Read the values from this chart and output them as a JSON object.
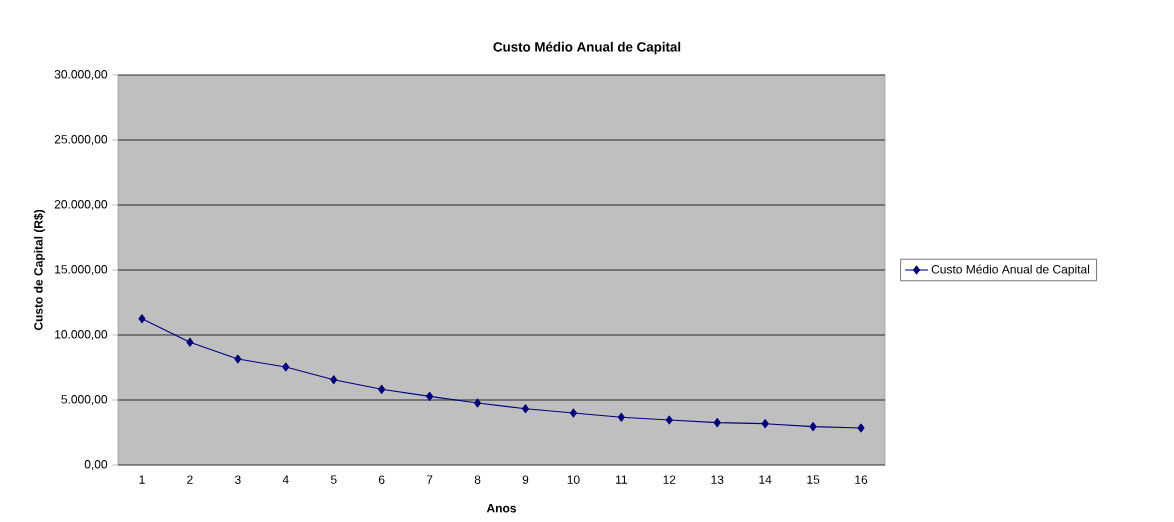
{
  "chart_data": {
    "type": "line",
    "title": "Custo Médio Anual de Capital",
    "xlabel": "Anos",
    "ylabel": "Custo de Capital (R$)",
    "categories": [
      "1",
      "2",
      "3",
      "4",
      "5",
      "6",
      "7",
      "8",
      "9",
      "10",
      "11",
      "12",
      "13",
      "14",
      "15",
      "16"
    ],
    "series": [
      {
        "name": "Custo Médio Anual de Capital",
        "color": "#000080",
        "values": [
          11250,
          9440,
          8150,
          7540,
          6560,
          5820,
          5280,
          4770,
          4330,
          4000,
          3670,
          3460,
          3260,
          3180,
          2950,
          2850
        ]
      }
    ],
    "ylim": [
      0,
      30000
    ],
    "yticks": [
      {
        "value": 0,
        "label": "0,00"
      },
      {
        "value": 5000,
        "label": "5.000,00"
      },
      {
        "value": 10000,
        "label": "10.000,00"
      },
      {
        "value": 15000,
        "label": "15.000,00"
      },
      {
        "value": 20000,
        "label": "20.000,00"
      },
      {
        "value": 25000,
        "label": "25.000,00"
      },
      {
        "value": 30000,
        "label": "30.000,00"
      }
    ],
    "grid": "y",
    "legend": "right",
    "marker": "diamond",
    "line_style": "solid"
  }
}
